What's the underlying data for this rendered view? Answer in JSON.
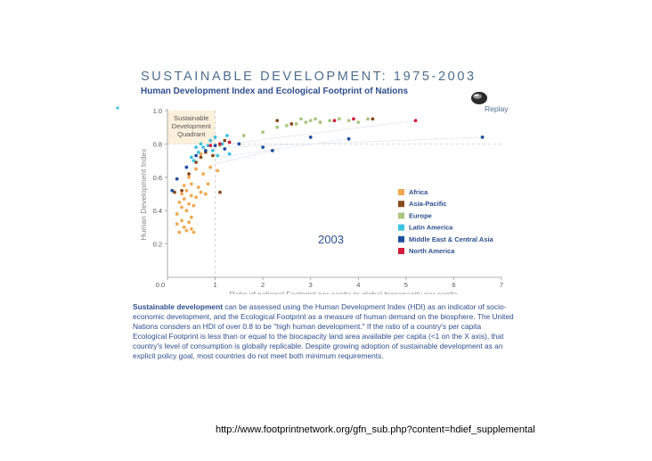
{
  "header": {
    "title": "SUSTAINABLE DEVELOPMENT: 1975-2003",
    "subtitle": "Human Development Index and Ecological Footprint of Nations"
  },
  "replay": {
    "label": "Replay",
    "icon": "replay-disc-icon"
  },
  "colors": {
    "Africa": "#f0a850",
    "Asia-Pacific": "#8a4a1c",
    "Europe": "#a8c880",
    "Latin America": "#3cc0e0",
    "Middle East & Central Asia": "#1f4fa0",
    "North America": "#d41c3c",
    "quadrant": "#fbf0dc",
    "text": "#2f4f8f"
  },
  "chart_data": {
    "type": "scatter",
    "title": "",
    "xlabel": "Ratio of national Footprint per capita to global biocapacity per capita",
    "ylabel": "Human Development Index",
    "xlim": [
      0,
      7
    ],
    "ylim": [
      0,
      1.0
    ],
    "xticks": [
      "0.0",
      "1",
      "2",
      "3",
      "4",
      "5",
      "6",
      "7"
    ],
    "yticks": [
      "0.2",
      "0.4",
      "0.6",
      "0.8",
      "1.0"
    ],
    "quadrant_label": [
      "Sustainable",
      "Development",
      "Quadrant"
    ],
    "year_label": "2003",
    "reference_lines": {
      "hdi": 0.8,
      "footprint_ratio": 1.0
    },
    "legend_position": "right",
    "series": [
      {
        "name": "Africa",
        "points": [
          [
            0.2,
            0.32
          ],
          [
            0.25,
            0.27
          ],
          [
            0.3,
            0.34
          ],
          [
            0.35,
            0.3
          ],
          [
            0.4,
            0.28
          ],
          [
            0.45,
            0.33
          ],
          [
            0.5,
            0.29
          ],
          [
            0.55,
            0.27
          ],
          [
            0.2,
            0.38
          ],
          [
            0.3,
            0.42
          ],
          [
            0.4,
            0.4
          ],
          [
            0.5,
            0.36
          ],
          [
            0.25,
            0.45
          ],
          [
            0.35,
            0.47
          ],
          [
            0.45,
            0.44
          ],
          [
            0.55,
            0.43
          ],
          [
            0.3,
            0.5
          ],
          [
            0.4,
            0.52
          ],
          [
            0.5,
            0.49
          ],
          [
            0.6,
            0.48
          ],
          [
            0.7,
            0.51
          ],
          [
            0.8,
            0.5
          ],
          [
            0.35,
            0.55
          ],
          [
            0.5,
            0.56
          ],
          [
            0.65,
            0.54
          ],
          [
            0.85,
            0.56
          ],
          [
            0.45,
            0.6
          ],
          [
            0.6,
            0.65
          ],
          [
            0.75,
            0.62
          ],
          [
            0.9,
            0.66
          ],
          [
            1.05,
            0.64
          ],
          [
            0.7,
            0.74
          ]
        ]
      },
      {
        "name": "Asia-Pacific",
        "points": [
          [
            0.15,
            0.51
          ],
          [
            0.3,
            0.52
          ],
          [
            0.45,
            0.62
          ],
          [
            0.6,
            0.69
          ],
          [
            0.7,
            0.72
          ],
          [
            0.8,
            0.75
          ],
          [
            0.95,
            0.73
          ],
          [
            1.1,
            0.51
          ],
          [
            1.2,
            0.82
          ],
          [
            2.3,
            0.94
          ],
          [
            2.6,
            0.92
          ],
          [
            3.2,
            0.93
          ],
          [
            4.3,
            0.95
          ]
        ]
      },
      {
        "name": "Europe",
        "points": [
          [
            1.1,
            0.79
          ],
          [
            1.6,
            0.85
          ],
          [
            2.0,
            0.87
          ],
          [
            2.3,
            0.9
          ],
          [
            2.5,
            0.91
          ],
          [
            2.7,
            0.92
          ],
          [
            2.9,
            0.93
          ],
          [
            3.0,
            0.94
          ],
          [
            3.2,
            0.93
          ],
          [
            3.4,
            0.94
          ],
          [
            3.6,
            0.95
          ],
          [
            3.8,
            0.94
          ],
          [
            4.0,
            0.93
          ],
          [
            4.2,
            0.95
          ],
          [
            2.8,
            0.95
          ],
          [
            3.1,
            0.95
          ]
        ]
      },
      {
        "name": "Latin America",
        "points": [
          [
            0.55,
            0.7
          ],
          [
            0.65,
            0.75
          ],
          [
            0.75,
            0.78
          ],
          [
            0.85,
            0.79
          ],
          [
            0.95,
            0.76
          ],
          [
            1.05,
            0.73
          ],
          [
            1.15,
            0.8
          ],
          [
            1.25,
            0.85
          ],
          [
            0.9,
            0.82
          ],
          [
            0.7,
            0.8
          ],
          [
            1.0,
            0.84
          ],
          [
            1.3,
            0.74
          ],
          [
            0.6,
            0.78
          ],
          [
            0.5,
            0.72
          ]
        ]
      },
      {
        "name": "Middle East & Central Asia",
        "points": [
          [
            0.1,
            0.52
          ],
          [
            0.2,
            0.59
          ],
          [
            0.4,
            0.66
          ],
          [
            0.6,
            0.73
          ],
          [
            0.8,
            0.76
          ],
          [
            1.0,
            0.79
          ],
          [
            1.2,
            0.77
          ],
          [
            1.5,
            0.8
          ],
          [
            2.0,
            0.78
          ],
          [
            2.2,
            0.76
          ],
          [
            3.0,
            0.84
          ],
          [
            3.8,
            0.83
          ],
          [
            6.6,
            0.84
          ]
        ]
      },
      {
        "name": "North America",
        "points": [
          [
            0.9,
            0.79
          ],
          [
            1.1,
            0.8
          ],
          [
            1.3,
            0.81
          ],
          [
            3.5,
            0.94
          ],
          [
            3.9,
            0.95
          ],
          [
            5.2,
            0.94
          ]
        ]
      }
    ]
  },
  "description": {
    "lead": "Sustainable development",
    "body": " can be assessed using the Human Development Index (HDI) as an indicator of socio-economic development, and the Ecological Footprint as a measure of human demand on the biosphere. The United Nations consders an HDI of over 0.8 to be  \"high human development.\" If the ratio of a country's per capita Ecological Footprint  is less than or equal to the biocapacity land area available per capita (<1 on the X axis), that country's level of consumption is globally replicable. Despite growing adoption of sustainable  development as an explicit policy goal, most countries do not meet both minimum requirements."
  },
  "source_url": "http://www.footprintnetwork.org/gfn_sub.php?content=hdief_supplemental"
}
